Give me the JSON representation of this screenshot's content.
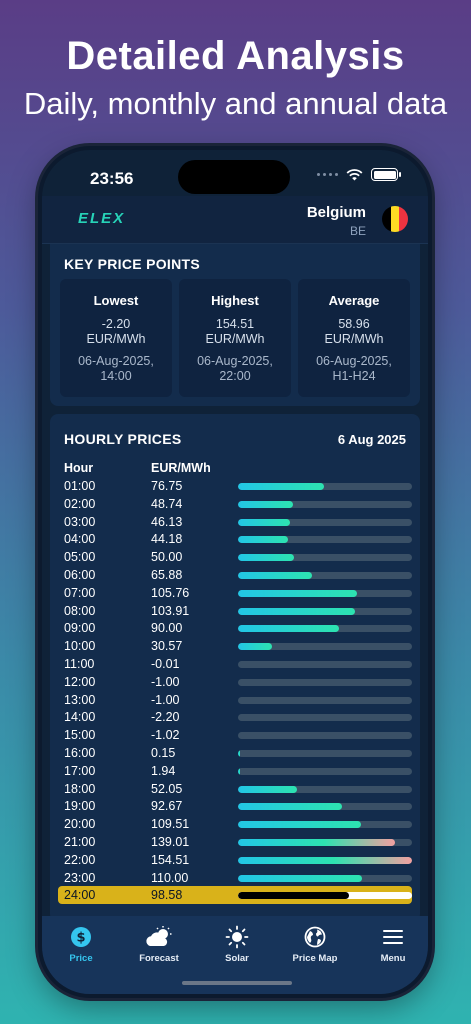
{
  "promo": {
    "title": "Detailed Analysis",
    "subtitle": "Daily, monthly and annual data"
  },
  "status_bar": {
    "time": "23:56"
  },
  "header": {
    "logo": "ELEX",
    "country": "Belgium",
    "country_code": "BE",
    "flag_colors": [
      "#000000",
      "#FDDA24",
      "#EF3340"
    ]
  },
  "key_prices": {
    "title": "KEY PRICE POINTS",
    "items": [
      {
        "label": "Lowest",
        "value": "-2.20",
        "unit": "EUR/MWh",
        "date": "06-Aug-2025,",
        "time": "14:00"
      },
      {
        "label": "Highest",
        "value": "154.51",
        "unit": "EUR/MWh",
        "date": "06-Aug-2025,",
        "time": "22:00"
      },
      {
        "label": "Average",
        "value": "58.96",
        "unit": "EUR/MWh",
        "date": "06-Aug-2025,",
        "time": "H1-H24"
      }
    ]
  },
  "hourly": {
    "title": "HOURLY PRICES",
    "date": "6 Aug 2025",
    "col_hour": "Hour",
    "col_price": "EUR/MWh",
    "max_value": 154.51,
    "rows": [
      {
        "hour": "01:00",
        "price": "76.75",
        "value": 76.75
      },
      {
        "hour": "02:00",
        "price": "48.74",
        "value": 48.74
      },
      {
        "hour": "03:00",
        "price": "46.13",
        "value": 46.13
      },
      {
        "hour": "04:00",
        "price": "44.18",
        "value": 44.18
      },
      {
        "hour": "05:00",
        "price": "50.00",
        "value": 50.0
      },
      {
        "hour": "06:00",
        "price": "65.88",
        "value": 65.88
      },
      {
        "hour": "07:00",
        "price": "105.76",
        "value": 105.76
      },
      {
        "hour": "08:00",
        "price": "103.91",
        "value": 103.91
      },
      {
        "hour": "09:00",
        "price": "90.00",
        "value": 90.0
      },
      {
        "hour": "10:00",
        "price": "30.57",
        "value": 30.57
      },
      {
        "hour": "11:00",
        "price": "-0.01",
        "value": -0.01
      },
      {
        "hour": "12:00",
        "price": "-1.00",
        "value": -1.0
      },
      {
        "hour": "13:00",
        "price": "-1.00",
        "value": -1.0
      },
      {
        "hour": "14:00",
        "price": "-2.20",
        "value": -2.2
      },
      {
        "hour": "15:00",
        "price": "-1.02",
        "value": -1.02
      },
      {
        "hour": "16:00",
        "price": "0.15",
        "value": 0.15
      },
      {
        "hour": "17:00",
        "price": "1.94",
        "value": 1.94
      },
      {
        "hour": "18:00",
        "price": "52.05",
        "value": 52.05
      },
      {
        "hour": "19:00",
        "price": "92.67",
        "value": 92.67
      },
      {
        "hour": "20:00",
        "price": "109.51",
        "value": 109.51
      },
      {
        "hour": "21:00",
        "price": "139.01",
        "value": 139.01,
        "warm": true
      },
      {
        "hour": "22:00",
        "price": "154.51",
        "value": 154.51,
        "warm": true
      },
      {
        "hour": "23:00",
        "price": "110.00",
        "value": 110.0
      },
      {
        "hour": "24:00",
        "price": "98.58",
        "value": 98.58,
        "highlight": true
      }
    ]
  },
  "tabs": [
    {
      "label": "Price",
      "icon": "dollar-icon",
      "active": true
    },
    {
      "label": "Forecast",
      "icon": "partly-cloudy-icon"
    },
    {
      "label": "Solar",
      "icon": "sun-icon"
    },
    {
      "label": "Price Map",
      "icon": "globe-icon"
    },
    {
      "label": "Menu",
      "icon": "hamburger-menu-icon"
    }
  ],
  "colors": {
    "accent": "#35c6ef",
    "bar_start": "#22c6e6",
    "bar_end": "#2de3b0",
    "warm": "#f2a0a0",
    "highlight": "#d9b21a"
  }
}
